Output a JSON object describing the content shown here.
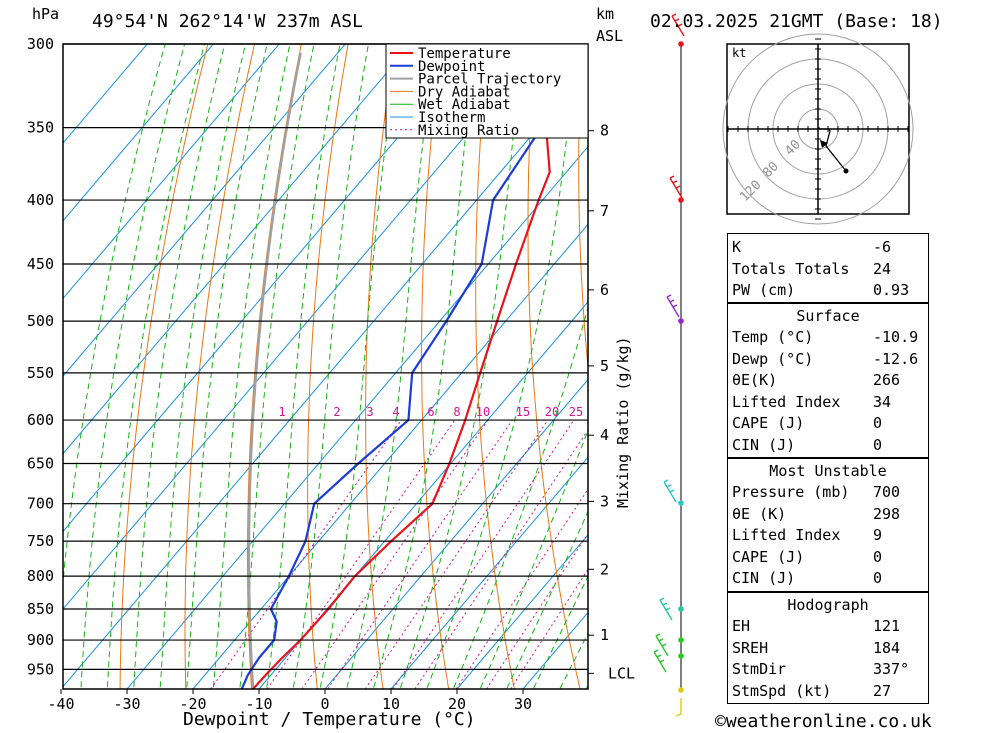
{
  "header": {
    "hpa_unit": "hPa",
    "location": "49°54'N  262°14'W  237m  ASL",
    "km_unit": "km",
    "asl_unit": "ASL",
    "datetime": "02.03.2025  21GMT  (Base: 18)"
  },
  "chart_data": {
    "type": "line",
    "xlabel": "Dewpoint / Temperature (°C)",
    "ylabel": "hPa",
    "y2label": "Mixing Ratio (g/kg)",
    "x_ticks": [
      -40,
      -30,
      -20,
      -10,
      0,
      10,
      20,
      30
    ],
    "pressure_levels": [
      300,
      350,
      400,
      450,
      500,
      550,
      600,
      650,
      700,
      750,
      800,
      850,
      900,
      950
    ],
    "km_ticks": [
      {
        "label": "8",
        "p": 352
      },
      {
        "label": "7",
        "p": 408
      },
      {
        "label": "6",
        "p": 472
      },
      {
        "label": "5",
        "p": 543
      },
      {
        "label": "4",
        "p": 617
      },
      {
        "label": "3",
        "p": 697
      },
      {
        "label": "2",
        "p": 790
      },
      {
        "label": "1",
        "p": 892
      },
      {
        "label": "LCL",
        "p": 957
      }
    ],
    "mixing_ratio_labels": [
      "1",
      "2",
      "3",
      "4",
      "6",
      "8",
      "10",
      "15",
      "20",
      "25"
    ],
    "legend": [
      "Temperature",
      "Dewpoint",
      "Parcel Trajectory",
      "Dry Adiabat",
      "Wet Adiabat",
      "Isotherm",
      "Mixing Ratio"
    ],
    "series": [
      {
        "name": "Temperature",
        "color": "#e8141c",
        "points": [
          [
            300,
            -45
          ],
          [
            350,
            -38.8
          ],
          [
            380,
            -32.5
          ],
          [
            400,
            -30.6
          ],
          [
            450,
            -25.8
          ],
          [
            500,
            -21.3
          ],
          [
            550,
            -17.2
          ],
          [
            600,
            -13.4
          ],
          [
            650,
            -10.2
          ],
          [
            700,
            -7.6
          ],
          [
            750,
            -9
          ],
          [
            800,
            -10
          ],
          [
            850,
            -9.8
          ],
          [
            900,
            -10
          ],
          [
            930,
            -10.5
          ],
          [
            960,
            -10.8
          ],
          [
            985,
            -10.9
          ]
        ]
      },
      {
        "name": "Dewpoint",
        "color": "#1c3cd8",
        "points": [
          [
            300,
            -49
          ],
          [
            350,
            -39.5
          ],
          [
            400,
            -37.5
          ],
          [
            450,
            -31
          ],
          [
            500,
            -29
          ],
          [
            550,
            -27.5
          ],
          [
            600,
            -22
          ],
          [
            650,
            -24
          ],
          [
            700,
            -25.5
          ],
          [
            750,
            -22
          ],
          [
            800,
            -20
          ],
          [
            850,
            -18.5
          ],
          [
            870,
            -16
          ],
          [
            900,
            -14
          ],
          [
            930,
            -14
          ],
          [
            960,
            -13.5
          ],
          [
            985,
            -12.6
          ]
        ]
      }
    ]
  },
  "winds_colors": [
    "#e8141c",
    "#e8141c",
    "#9628c8",
    "#28c8c8",
    "#28c8a0",
    "#28c828",
    "#28c828",
    "#e0c814"
  ],
  "hodograph": {
    "unit": "kt",
    "ring_labels": [
      "40",
      "80",
      "120"
    ]
  },
  "indices": {
    "basic": [
      {
        "key": "K",
        "value": "-6"
      },
      {
        "key": "Totals Totals",
        "value": "24"
      },
      {
        "key": "PW (cm)",
        "value": "0.93"
      }
    ],
    "surface_title": "Surface",
    "surface": [
      {
        "key": "Temp (°C)",
        "value": "-10.9"
      },
      {
        "key": "Dewp (°C)",
        "value": "-12.6"
      },
      {
        "key": "θE(K)",
        "value": "266"
      },
      {
        "key": "Lifted Index",
        "value": "34"
      },
      {
        "key": "CAPE (J)",
        "value": "0"
      },
      {
        "key": "CIN (J)",
        "value": "0"
      }
    ],
    "unstable_title": "Most Unstable",
    "unstable": [
      {
        "key": "Pressure (mb)",
        "value": "700"
      },
      {
        "key": "θE (K)",
        "value": "298"
      },
      {
        "key": "Lifted Index",
        "value": "9"
      },
      {
        "key": "CAPE (J)",
        "value": "0"
      },
      {
        "key": "CIN (J)",
        "value": "0"
      }
    ],
    "hodo_title": "Hodograph",
    "hodo": [
      {
        "key": "EH",
        "value": "121"
      },
      {
        "key": "SREH",
        "value": "184"
      },
      {
        "key": "StmDir",
        "value": "337°"
      },
      {
        "key": "StmSpd (kt)",
        "value": "27"
      }
    ]
  },
  "footer": {
    "copyright": "©weatheronline.co.uk"
  }
}
